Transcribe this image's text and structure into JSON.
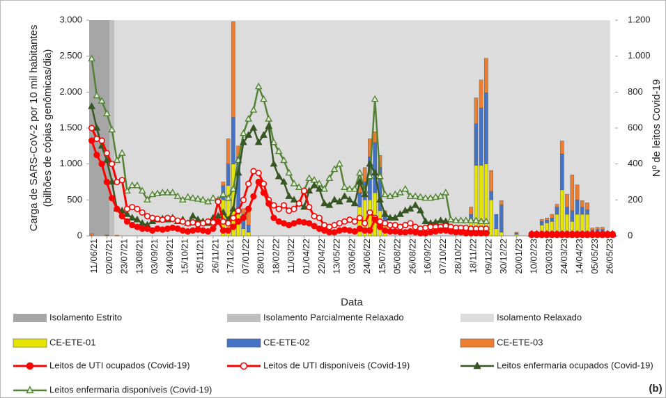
{
  "chart_data": {
    "type": "bar-line",
    "y_label": [
      "Carga de SARS-CoV-2 por 10 mil habitantes",
      "(bilhões de cópias genômicas/dia)"
    ],
    "y2_label": "Nº de leitos Covid-19",
    "x_label": "Data",
    "annotation": "(b)",
    "categories": [
      "11/06/21",
      null,
      null,
      "02/07/21",
      null,
      null,
      "23/07/21",
      null,
      null,
      "13/08/21",
      null,
      null,
      "03/09/21",
      null,
      null,
      "24/09/21",
      null,
      null,
      "15/10/21",
      null,
      null,
      "05/11/21",
      null,
      null,
      "26/11/21",
      null,
      null,
      "17/12/21",
      null,
      null,
      "07/01/22",
      null,
      null,
      "28/01/22",
      null,
      null,
      "18/02/22",
      null,
      null,
      "11/03/22",
      null,
      null,
      "01/04/22",
      null,
      null,
      "22/04/22",
      null,
      null,
      "13/05/22",
      null,
      null,
      "03/06/22",
      null,
      null,
      "24/06/22",
      null,
      null,
      "15/07/22",
      null,
      null,
      "05/08/22",
      null,
      null,
      "26/08/22",
      null,
      null,
      "16/09/22",
      null,
      null,
      "07/10/22",
      null,
      null,
      "28/10/22",
      null,
      null,
      "18/11/22",
      null,
      null,
      "09/12/22",
      null,
      null,
      "30/12/22",
      null,
      null,
      "20/01/23",
      null,
      null,
      "10/02/23",
      null,
      null,
      "03/03/23",
      null,
      null,
      "24/03/23",
      null,
      null,
      "14/04/23",
      null,
      null,
      "05/05/23",
      null,
      null,
      "26/05/23",
      null
    ],
    "ylim": [
      0,
      3000
    ],
    "yticks": [
      0,
      {
        "value": 500,
        "label": "500"
      },
      {
        "value": 1000,
        "label": "1.000"
      },
      {
        "value": 1500,
        "label": "1.500"
      },
      {
        "value": 2000,
        "label": "2.000"
      },
      {
        "value": 2500,
        "label": "2.500"
      },
      {
        "value": 3000,
        "label": "3.000"
      }
    ],
    "y2lim": [
      0,
      1200
    ],
    "y2ticks": [
      0,
      200,
      400,
      600,
      800,
      {
        "value": 1000,
        "label": "1.000"
      },
      {
        "value": 1200,
        "label": "1.200"
      }
    ],
    "periods": [
      {
        "name": "Isolamento Estrito",
        "color": "#a6a6a6",
        "start": 0,
        "end": 4
      },
      {
        "name": "Isolamento Parcialmente Relaxado",
        "color": "#bfbfbf",
        "start": 4,
        "end": 5
      },
      {
        "name": "Isolamento Relaxado",
        "color": "#dcdcdc",
        "start": 5,
        "end": 103
      }
    ],
    "series": [
      {
        "name": "CE-ETE-01",
        "type": "bar",
        "color": "#e5e500",
        "values": [
          0,
          0,
          0,
          5,
          0,
          0,
          0,
          0,
          0,
          0,
          0,
          0,
          0,
          0,
          0,
          0,
          0,
          0,
          0,
          0,
          0,
          0,
          0,
          0,
          0,
          0,
          500,
          700,
          1000,
          300,
          100,
          50,
          0,
          0,
          0,
          0,
          0,
          0,
          0,
          0,
          0,
          0,
          0,
          0,
          0,
          0,
          0,
          0,
          0,
          0,
          0,
          0,
          0,
          400,
          500,
          500,
          600,
          350,
          200,
          0,
          0,
          0,
          0,
          0,
          0,
          0,
          0,
          0,
          0,
          0,
          0,
          0,
          0,
          0,
          0,
          200,
          980,
          980,
          1000,
          500,
          100,
          50,
          0,
          0,
          20,
          0,
          0,
          0,
          30,
          150,
          180,
          200,
          300,
          640,
          300,
          200,
          300,
          300,
          300,
          50,
          60,
          60,
          0,
          0
        ]
      },
      {
        "name": "CE-ETE-02",
        "type": "bar",
        "color": "#4472c4",
        "values": [
          0,
          0,
          0,
          0,
          0,
          0,
          0,
          0,
          0,
          0,
          0,
          0,
          0,
          0,
          0,
          0,
          0,
          0,
          0,
          0,
          0,
          0,
          0,
          0,
          0,
          0,
          200,
          300,
          650,
          800,
          200,
          100,
          0,
          0,
          0,
          0,
          0,
          0,
          0,
          0,
          0,
          0,
          0,
          0,
          0,
          0,
          0,
          0,
          0,
          0,
          0,
          0,
          0,
          200,
          250,
          600,
          700,
          600,
          100,
          0,
          0,
          0,
          0,
          0,
          0,
          0,
          0,
          0,
          0,
          0,
          0,
          0,
          0,
          0,
          0,
          100,
          580,
          800,
          990,
          120,
          200,
          380,
          0,
          0,
          20,
          0,
          0,
          0,
          20,
          50,
          40,
          50,
          100,
          500,
          100,
          150,
          200,
          100,
          60,
          30,
          30,
          30,
          0,
          0
        ]
      },
      {
        "name": "CE-ETE-03",
        "type": "bar",
        "color": "#ed7d31",
        "values": [
          30,
          0,
          0,
          10,
          0,
          10,
          0,
          0,
          0,
          0,
          0,
          0,
          0,
          0,
          0,
          0,
          0,
          0,
          0,
          0,
          0,
          0,
          0,
          0,
          0,
          0,
          50,
          350,
          1330,
          150,
          80,
          240,
          0,
          0,
          0,
          0,
          0,
          0,
          0,
          0,
          0,
          0,
          0,
          0,
          0,
          0,
          0,
          0,
          0,
          0,
          0,
          0,
          0,
          100,
          200,
          250,
          150,
          170,
          50,
          0,
          0,
          0,
          0,
          0,
          0,
          0,
          0,
          0,
          0,
          0,
          0,
          0,
          0,
          0,
          0,
          100,
          360,
          390,
          480,
          290,
          0,
          60,
          0,
          0,
          10,
          0,
          0,
          0,
          10,
          30,
          30,
          50,
          40,
          180,
          180,
          500,
          210,
          90,
          100,
          30,
          30,
          30,
          0,
          0
        ]
      },
      {
        "name": "Leitos de UTI ocupados (Covid-19)",
        "type": "line",
        "axis": "y2",
        "color": "#ff0000",
        "marker": "circle",
        "marker_fill": "#ff0000",
        "values": [
          530,
          450,
          400,
          300,
          210,
          150,
          110,
          80,
          60,
          50,
          40,
          40,
          30,
          40,
          35,
          40,
          45,
          40,
          30,
          25,
          30,
          35,
          30,
          25,
          40,
          80,
          30,
          30,
          50,
          80,
          100,
          150,
          220,
          300,
          240,
          180,
          100,
          80,
          70,
          60,
          70,
          80,
          75,
          70,
          55,
          40,
          30,
          20,
          20,
          30,
          35,
          30,
          25,
          40,
          30,
          30,
          90,
          50,
          30,
          25,
          25,
          20,
          20,
          25,
          20,
          15,
          15,
          20,
          25,
          30,
          30,
          25,
          20,
          20,
          15,
          15,
          15,
          15,
          15,
          null,
          null,
          null,
          null,
          null,
          null,
          null,
          null,
          5,
          5,
          5,
          5,
          5,
          5,
          5,
          5,
          5,
          5,
          5,
          5,
          5,
          5,
          5,
          5,
          5
        ]
      },
      {
        "name": "Leitos de UTI disponíveis (Covid-19)",
        "type": "line",
        "axis": "y2",
        "color": "#ff0000",
        "marker": "circle",
        "marker_fill": "#ffffff",
        "values": [
          600,
          540,
          530,
          460,
          400,
          300,
          310,
          150,
          160,
          150,
          130,
          110,
          100,
          95,
          90,
          100,
          95,
          85,
          80,
          70,
          75,
          65,
          70,
          80,
          75,
          190,
          80,
          70,
          100,
          140,
          200,
          290,
          360,
          350,
          290,
          200,
          170,
          150,
          170,
          140,
          150,
          180,
          250,
          160,
          110,
          100,
          60,
          50,
          60,
          70,
          80,
          90,
          80,
          100,
          70,
          130,
          100,
          80,
          70,
          60,
          60,
          50,
          60,
          70,
          50,
          40,
          45,
          50,
          50,
          50,
          55,
          50,
          45,
          45,
          45,
          40,
          40,
          40,
          40,
          null,
          null,
          null,
          null,
          null,
          null,
          null,
          null,
          10,
          10,
          10,
          10,
          10,
          10,
          10,
          10,
          10,
          10,
          10,
          10,
          10,
          10,
          10,
          10,
          10
        ]
      },
      {
        "name": "Leitos enfermaria ocupados (Covid-19)",
        "type": "line",
        "axis": "y2",
        "color": "#375623",
        "marker": "triangle",
        "marker_fill": "#375623",
        "values": [
          720,
          600,
          500,
          420,
          300,
          150,
          140,
          120,
          100,
          90,
          70,
          60,
          80,
          90,
          95,
          90,
          100,
          80,
          90,
          70,
          110,
          90,
          80,
          70,
          100,
          110,
          130,
          90,
          150,
          350,
          520,
          560,
          600,
          520,
          560,
          610,
          400,
          330,
          300,
          220,
          200,
          180,
          160,
          250,
          280,
          260,
          180,
          170,
          200,
          190,
          220,
          200,
          180,
          300,
          230,
          400,
          350,
          200,
          120,
          100,
          100,
          120,
          140,
          150,
          170,
          140,
          80,
          70,
          75,
          85,
          80,
          40,
          35,
          30,
          30,
          30,
          30,
          30,
          30,
          null,
          null,
          null,
          null,
          null,
          null,
          null,
          null,
          10,
          10,
          10,
          10,
          10,
          10,
          10,
          10,
          10,
          10,
          10,
          10,
          10,
          10,
          10,
          10,
          10
        ]
      },
      {
        "name": "Leitos enfermaria disponíveis (Covid-19)",
        "type": "line",
        "axis": "y2",
        "color": "#548235",
        "marker": "triangle",
        "marker_fill": "#e2efda",
        "values": [
          985,
          780,
          750,
          680,
          590,
          420,
          460,
          250,
          280,
          280,
          250,
          200,
          230,
          235,
          240,
          240,
          240,
          220,
          200,
          215,
          210,
          205,
          200,
          190,
          210,
          200,
          230,
          210,
          260,
          420,
          570,
          650,
          700,
          830,
          760,
          650,
          520,
          470,
          420,
          350,
          290,
          270,
          250,
          320,
          310,
          290,
          260,
          320,
          370,
          400,
          270,
          260,
          260,
          350,
          250,
          330,
          760,
          330,
          230,
          220,
          230,
          240,
          260,
          220,
          220,
          215,
          210,
          210,
          215,
          220,
          240,
          90,
          85,
          85,
          85,
          85,
          85,
          80,
          80,
          null,
          null,
          null,
          null,
          null,
          null,
          null,
          null,
          10,
          10,
          10,
          10,
          10,
          10,
          10,
          10,
          10,
          10,
          10,
          10,
          10,
          10,
          10,
          10,
          10
        ]
      }
    ]
  }
}
